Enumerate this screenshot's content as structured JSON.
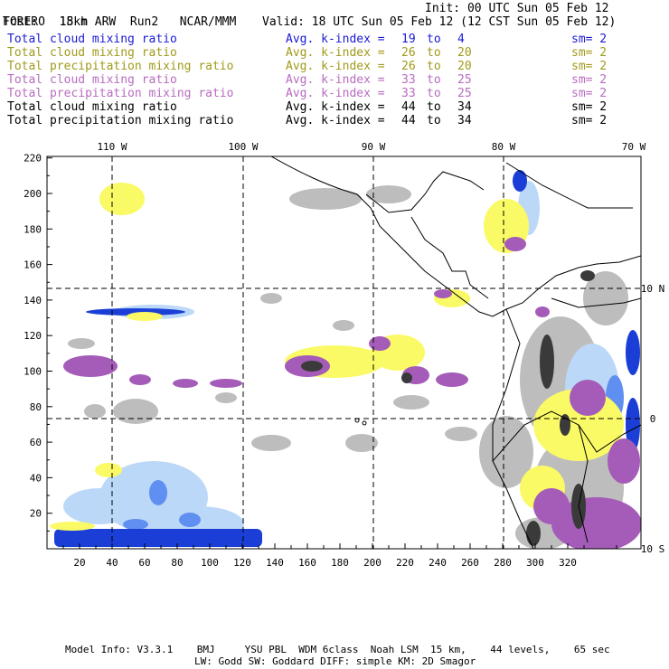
{
  "header": {
    "model": "TORERO",
    "resolution": "15km ARW",
    "run": "Run2",
    "org": "NCAR/MMM",
    "init": "Init: 00 UTC Sun 05 Feb 12",
    "fcst_label": "Fcst:",
    "fcst_value": "18 h",
    "valid": "Valid: 18 UTC Sun 05 Feb 12 (12 CST Sun 05 Feb 12)"
  },
  "legend": [
    {
      "field": "Total cloud mixing ratio",
      "avg": "Avg. k-index =",
      "k1": "19",
      "to": "to",
      "k2": "4",
      "sm": "sm= 2",
      "color": "#1a1ad6"
    },
    {
      "field": "Total cloud mixing ratio",
      "avg": "Avg. k-index =",
      "k1": "26",
      "to": "to",
      "k2": "20",
      "sm": "sm= 2",
      "color": "#a09a1a"
    },
    {
      "field": "Total precipitation mixing ratio",
      "avg": "Avg. k-index =",
      "k1": "26",
      "to": "to",
      "k2": "20",
      "sm": "sm= 2",
      "color": "#a09a1a"
    },
    {
      "field": "Total cloud mixing ratio",
      "avg": "Avg. k-index =",
      "k1": "33",
      "to": "to",
      "k2": "25",
      "sm": "sm= 2",
      "color": "#b86cc0"
    },
    {
      "field": "Total precipitation mixing ratio",
      "avg": "Avg. k-index =",
      "k1": "33",
      "to": "to",
      "k2": "25",
      "sm": "sm= 2",
      "color": "#b86cc0"
    },
    {
      "field": "Total cloud mixing ratio",
      "avg": "Avg. k-index =",
      "k1": "44",
      "to": "to",
      "k2": "34",
      "sm": "sm= 2",
      "color": "#000000"
    },
    {
      "field": "Total precipitation mixing ratio",
      "avg": "Avg. k-index =",
      "k1": "44",
      "to": "to",
      "k2": "34",
      "sm": "sm= 2",
      "color": "#000000"
    }
  ],
  "map": {
    "top_lon_labels": [
      "110 W",
      "100 W",
      "90 W",
      "80 W",
      "70 W"
    ],
    "right_lat_labels": [
      "10 N",
      "0",
      "10 S"
    ],
    "left_ticks": [
      "220",
      "200",
      "180",
      "160",
      "140",
      "120",
      "100",
      "80",
      "60",
      "40",
      "20"
    ],
    "bottom_ticks": [
      "20",
      "40",
      "60",
      "80",
      "100",
      "120",
      "140",
      "160",
      "180",
      "200",
      "220",
      "240",
      "260",
      "280",
      "300",
      "320"
    ],
    "colors": {
      "blue_dark": "#1b3fd6",
      "blue_mid": "#5f8ff0",
      "blue_light": "#bcd8f8",
      "yellow": "#fafa66",
      "purple": "#a45cb8",
      "gray_light": "#bdbdbd",
      "gray_dark": "#3a3a3a"
    }
  },
  "footer": {
    "line1": "Model Info: V3.3.1    BMJ     YSU PBL  WDM 6class  Noah LSM  15 km,    44 levels,    65 sec",
    "line2": "LW: Godd SW: Goddard DIFF: simple KM: 2D Smagor"
  }
}
